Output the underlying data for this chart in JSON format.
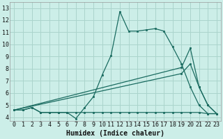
{
  "xlabel": "Humidex (Indice chaleur)",
  "bg_color": "#cceee8",
  "grid_color": "#aad4cc",
  "line_color": "#1a6b60",
  "xlim": [
    -0.5,
    23.5
  ],
  "ylim": [
    3.7,
    13.5
  ],
  "xticks": [
    0,
    1,
    2,
    3,
    4,
    5,
    6,
    7,
    8,
    9,
    10,
    11,
    12,
    13,
    14,
    15,
    16,
    17,
    18,
    19,
    20,
    21,
    22,
    23
  ],
  "yticks": [
    4,
    5,
    6,
    7,
    8,
    9,
    10,
    11,
    12,
    13
  ],
  "line1_x": [
    0,
    1,
    2,
    3,
    4,
    5,
    6,
    7,
    8,
    9,
    10,
    11,
    12,
    13,
    14,
    15,
    16,
    17,
    18,
    19,
    20,
    21,
    22,
    23
  ],
  "line1_y": [
    4.6,
    4.6,
    4.8,
    4.4,
    4.4,
    4.4,
    4.4,
    3.9,
    4.8,
    5.7,
    7.5,
    9.1,
    12.7,
    11.1,
    11.1,
    11.2,
    11.3,
    11.1,
    9.8,
    8.4,
    6.5,
    5.0,
    4.3,
    4.3
  ],
  "line2_x": [
    0,
    1,
    2,
    3,
    4,
    5,
    6,
    7,
    8,
    9,
    10,
    11,
    12,
    13,
    14,
    15,
    16,
    17,
    18,
    19,
    20,
    21,
    22,
    23
  ],
  "line2_y": [
    4.6,
    4.6,
    4.8,
    4.4,
    4.4,
    4.4,
    4.4,
    4.4,
    4.4,
    4.4,
    4.4,
    4.4,
    4.4,
    4.4,
    4.4,
    4.4,
    4.4,
    4.4,
    4.4,
    4.4,
    4.4,
    4.4,
    4.3,
    4.3
  ],
  "line3_x": [
    0,
    19,
    20,
    21,
    22,
    23
  ],
  "line3_y": [
    4.6,
    8.1,
    9.7,
    6.5,
    5.0,
    4.3
  ],
  "line4_x": [
    0,
    19,
    20,
    21,
    22,
    23
  ],
  "line4_y": [
    4.6,
    7.6,
    8.4,
    6.5,
    5.0,
    4.3
  ],
  "xlabel_fontsize": 7,
  "tick_fontsize": 6
}
